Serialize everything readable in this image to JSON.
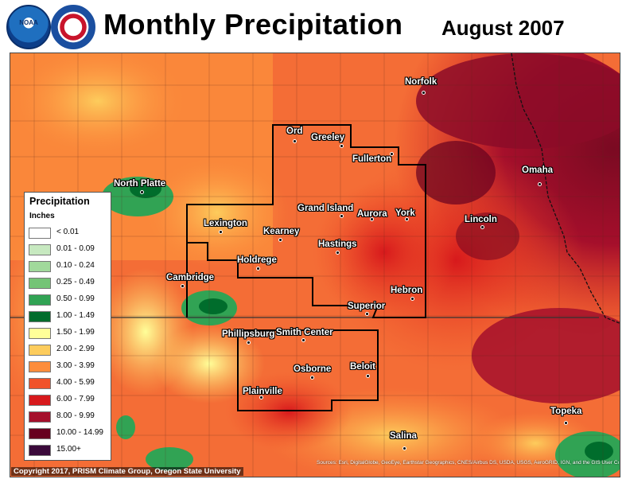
{
  "header": {
    "title": "Monthly Precipitation",
    "period": "August 2007",
    "logos": [
      {
        "name": "noaa-logo",
        "text": "NOAA"
      },
      {
        "name": "nws-logo",
        "text": "NATIONAL WEATHER SERVICE"
      }
    ]
  },
  "legend": {
    "title": "Precipitation",
    "unit": "Inches",
    "items": [
      {
        "label": "< 0.01",
        "color": "#ffffff"
      },
      {
        "label": "0.01 - 0.09",
        "color": "#c7e9c0"
      },
      {
        "label": "0.10 - 0.24",
        "color": "#a1d99b"
      },
      {
        "label": "0.25 - 0.49",
        "color": "#74c476"
      },
      {
        "label": "0.50 - 0.99",
        "color": "#31a354"
      },
      {
        "label": "1.00 - 1.49",
        "color": "#006d2c"
      },
      {
        "label": "1.50 - 1.99",
        "color": "#ffff99"
      },
      {
        "label": "2.00 - 2.99",
        "color": "#fdcc5c"
      },
      {
        "label": "3.00 - 3.99",
        "color": "#fd8d3c"
      },
      {
        "label": "4.00 - 5.99",
        "color": "#f0522a"
      },
      {
        "label": "6.00 - 7.99",
        "color": "#d7191c"
      },
      {
        "label": "8.00 - 9.99",
        "color": "#a50f2b"
      },
      {
        "label": "10.00 - 14.99",
        "color": "#67001f"
      },
      {
        "label": "15.00+",
        "color": "#3b0a3b"
      }
    ]
  },
  "cities": [
    {
      "name": "Norfolk"
    },
    {
      "name": "Ord"
    },
    {
      "name": "Greeley"
    },
    {
      "name": "Fullerton"
    },
    {
      "name": "North Platte"
    },
    {
      "name": "Omaha"
    },
    {
      "name": "Grand Island"
    },
    {
      "name": "Aurora"
    },
    {
      "name": "York"
    },
    {
      "name": "Lexington"
    },
    {
      "name": "Lincoln"
    },
    {
      "name": "Kearney"
    },
    {
      "name": "Hastings"
    },
    {
      "name": "Holdrege"
    },
    {
      "name": "Cambridge"
    },
    {
      "name": "Hebron"
    },
    {
      "name": "Superior"
    },
    {
      "name": "Phillipsburg"
    },
    {
      "name": "Smith Center"
    },
    {
      "name": "Osborne"
    },
    {
      "name": "Beloit"
    },
    {
      "name": "Plainville"
    },
    {
      "name": "Topeka"
    },
    {
      "name": "Salina"
    }
  ],
  "footer": {
    "copyright": "Copyright 2017, PRISM Climate Group, Oregon State University",
    "sources": "Sources: Esri, DigitalGlobe, GeoEye, Earthstar Geographics, CNES/Airbus DS, USDA, USGS, AeroGRID, IGN, and the GIS User Community"
  }
}
